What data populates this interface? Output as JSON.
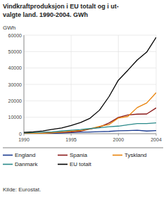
{
  "chart_data": {
    "type": "line",
    "title": "Vindkraftproduksjon i EU totalt og i ut-",
    "subtitle": "valgte land. 1990-2004. GWh",
    "ylabel": "GWh",
    "source": "Kilde: Eurostat.",
    "x": [
      1990,
      1991,
      1992,
      1993,
      1994,
      1995,
      1996,
      1997,
      1998,
      1999,
      2000,
      2001,
      2002,
      2003,
      2004
    ],
    "series": [
      {
        "name": "England",
        "color": "#1a3a8f",
        "values": [
          0,
          100,
          150,
          200,
          400,
          700,
          900,
          1000,
          1200,
          1400,
          1800,
          1900,
          2100,
          1600,
          1900
        ]
      },
      {
        "name": "Spania",
        "color": "#8b1a1a",
        "values": [
          0,
          200,
          400,
          600,
          800,
          1000,
          1600,
          2800,
          4000,
          6500,
          9900,
          11400,
          11900,
          12000,
          15700
        ]
      },
      {
        "name": "Tyskland",
        "color": "#e8820a",
        "values": [
          0,
          100,
          200,
          600,
          1000,
          1600,
          2000,
          2900,
          4400,
          5500,
          9500,
          10500,
          15900,
          18700,
          25000
        ]
      },
      {
        "name": "Danmark",
        "color": "#2b8a8a",
        "values": [
          450,
          700,
          900,
          1100,
          1600,
          2100,
          2500,
          3100,
          3600,
          4200,
          4600,
          5400,
          6200,
          6200,
          6600
        ]
      },
      {
        "name": "EU totalt",
        "color": "#000000",
        "values": [
          800,
          1100,
          1700,
          2600,
          3500,
          5000,
          6800,
          9400,
          14300,
          22500,
          32600,
          38600,
          44900,
          49700,
          58700
        ]
      }
    ],
    "xlim": [
      1990,
      2004
    ],
    "ylim": [
      0,
      60000
    ],
    "xticks": [
      1990,
      1995,
      2000,
      2004
    ],
    "yticks": [
      0,
      10000,
      20000,
      30000,
      40000,
      50000,
      60000
    ],
    "grid": true,
    "legend": "bottom"
  }
}
